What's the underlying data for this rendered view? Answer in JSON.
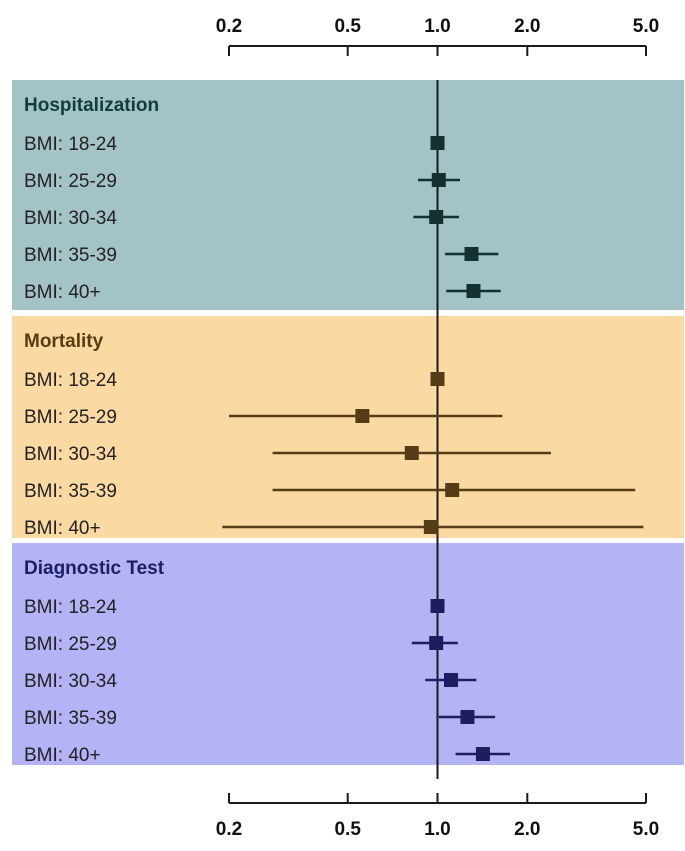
{
  "chart_data": {
    "type": "forest",
    "scale": "log",
    "xlim": [
      0.2,
      5.0
    ],
    "reference_value": 1.0,
    "ticks": [
      "0.2",
      "0.5",
      "1.0",
      "2.0",
      "5.0"
    ],
    "tick_values": [
      0.2,
      0.5,
      1.0,
      2.0,
      5.0
    ],
    "groups": [
      {
        "title": "Hospitalization",
        "bg_color": "#a3c3c6",
        "text_color": "#123c40",
        "mark_color": "#12312f",
        "rows": [
          {
            "label": "BMI: 18-24",
            "estimate": 1.0,
            "ci": [
              1.0,
              1.0
            ]
          },
          {
            "label": "BMI: 25-29",
            "estimate": 1.01,
            "ci": [
              0.86,
              1.19
            ]
          },
          {
            "label": "BMI: 30-34",
            "estimate": 0.99,
            "ci": [
              0.83,
              1.18
            ]
          },
          {
            "label": "BMI: 35-39",
            "estimate": 1.3,
            "ci": [
              1.06,
              1.6
            ]
          },
          {
            "label": "BMI: 40+",
            "estimate": 1.32,
            "ci": [
              1.07,
              1.63
            ]
          }
        ]
      },
      {
        "title": "Mortality",
        "bg_color": "#fad9a3",
        "text_color": "#5a3c12",
        "mark_color": "#553c17",
        "rows": [
          {
            "label": "BMI: 18-24",
            "estimate": 1.0,
            "ci": [
              1.0,
              1.0
            ]
          },
          {
            "label": "BMI: 25-29",
            "estimate": 0.56,
            "ci": [
              0.2,
              1.65
            ]
          },
          {
            "label": "BMI: 30-34",
            "estimate": 0.82,
            "ci": [
              0.28,
              2.4
            ]
          },
          {
            "label": "BMI: 35-39",
            "estimate": 1.12,
            "ci": [
              0.28,
              4.6
            ]
          },
          {
            "label": "BMI: 40+",
            "estimate": 0.95,
            "ci": [
              0.19,
              4.9
            ]
          }
        ]
      },
      {
        "title": "Diagnostic Test",
        "bg_color": "#b3b3f6",
        "text_color": "#1e1e66",
        "mark_color": "#1e1e5e",
        "rows": [
          {
            "label": "BMI: 18-24",
            "estimate": 1.0,
            "ci": [
              1.0,
              1.0
            ]
          },
          {
            "label": "BMI: 25-29",
            "estimate": 0.99,
            "ci": [
              0.82,
              1.17
            ]
          },
          {
            "label": "BMI: 30-34",
            "estimate": 1.11,
            "ci": [
              0.91,
              1.35
            ]
          },
          {
            "label": "BMI: 35-39",
            "estimate": 1.26,
            "ci": [
              1.01,
              1.56
            ]
          },
          {
            "label": "BMI: 40+",
            "estimate": 1.42,
            "ci": [
              1.15,
              1.75
            ]
          }
        ]
      }
    ],
    "line_color": "#1a1a1a"
  }
}
